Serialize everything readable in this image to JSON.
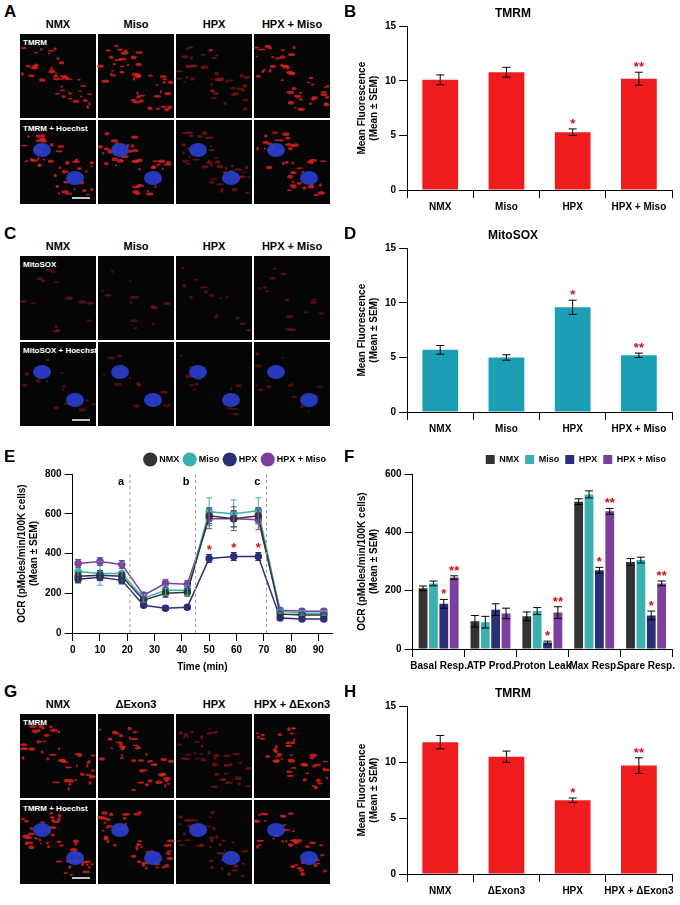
{
  "image_panels": [
    {
      "panel": "A",
      "columns": [
        "NMX",
        "Miso",
        "HPX",
        "HPX + Miso"
      ],
      "rows": [
        "TMRM",
        "TMRM + Hoechst"
      ]
    },
    {
      "panel": "C",
      "columns": [
        "NMX",
        "Miso",
        "HPX",
        "HPX + Miso"
      ],
      "rows": [
        "MitoSOX",
        "MitoSOX + Hoechst"
      ]
    },
    {
      "panel": "G",
      "columns": [
        "NMX",
        "ΔExon3",
        "HPX",
        "HPX + ΔExon3"
      ],
      "rows": [
        "TMRM",
        "TMRM + Hoechst"
      ]
    }
  ],
  "chart_data": [
    {
      "panel": "B",
      "type": "bar",
      "title": "TMRM",
      "ylabel": [
        "Mean Fluorescence",
        "(Mean ± SEM)"
      ],
      "categories": [
        "NMX",
        "Miso",
        "HPX",
        "HPX + Miso"
      ],
      "values": [
        10.1,
        10.8,
        5.3,
        10.2
      ],
      "errors": [
        0.45,
        0.45,
        0.3,
        0.6
      ],
      "marks": [
        null,
        null,
        "*",
        "**"
      ],
      "color": "#ee1c1c",
      "ylim": [
        0,
        15
      ],
      "yticks": [
        0,
        5,
        10,
        15
      ],
      "grid": false
    },
    {
      "panel": "D",
      "type": "bar",
      "title": "MitoSOX",
      "ylabel": [
        "Mean Fluorescence",
        "(Mean ± SEM)"
      ],
      "categories": [
        "NMX",
        "Miso",
        "HPX",
        "HPX + Miso"
      ],
      "values": [
        5.7,
        5.0,
        9.6,
        5.2
      ],
      "errors": [
        0.4,
        0.25,
        0.65,
        0.2
      ],
      "marks": [
        null,
        null,
        "*",
        "**"
      ],
      "color": "#1a9fb5",
      "ylim": [
        0,
        15
      ],
      "yticks": [
        0,
        5,
        10,
        15
      ],
      "grid": false
    },
    {
      "panel": "E",
      "type": "line",
      "xlabel": "Time (min)",
      "ylabel": [
        "OCR (pMoles/min/100K cells)",
        "(Mean ± SEM)"
      ],
      "x": [
        2,
        10,
        18,
        26,
        34,
        42,
        50,
        59,
        68,
        76,
        84,
        92
      ],
      "series": [
        {
          "name": "NMX",
          "color": "#333333",
          "values": [
            285,
            290,
            285,
            165,
            200,
            205,
            590,
            575,
            590,
            95,
            90,
            90
          ],
          "errors": [
            20,
            25,
            20,
            15,
            20,
            20,
            40,
            40,
            40,
            10,
            10,
            10
          ]
        },
        {
          "name": "Miso",
          "color": "#3bb0b0",
          "values": [
            310,
            300,
            300,
            175,
            215,
            215,
            610,
            600,
            615,
            110,
            100,
            100
          ],
          "errors": [
            60,
            60,
            55,
            20,
            25,
            25,
            70,
            70,
            65,
            10,
            10,
            10
          ]
        },
        {
          "name": "HPX",
          "color": "#2b2f7a",
          "values": [
            270,
            280,
            265,
            140,
            125,
            130,
            375,
            385,
            385,
            75,
            70,
            70
          ],
          "errors": [
            15,
            15,
            15,
            10,
            10,
            10,
            20,
            20,
            20,
            8,
            8,
            8
          ],
          "marks": [
            null,
            null,
            null,
            null,
            null,
            null,
            "*",
            "*",
            "*",
            null,
            null,
            null
          ]
        },
        {
          "name": "HPX + Miso",
          "color": "#7b3f9e",
          "values": [
            350,
            360,
            345,
            190,
            250,
            245,
            575,
            575,
            570,
            115,
            110,
            110
          ],
          "errors": [
            20,
            20,
            20,
            15,
            20,
            20,
            50,
            60,
            50,
            10,
            10,
            10
          ]
        }
      ],
      "vlines": [
        {
          "x": 21,
          "label": "a"
        },
        {
          "x": 45,
          "label": "b"
        },
        {
          "x": 71,
          "label": "c"
        }
      ],
      "marker": "circle",
      "xlim": [
        0,
        95
      ],
      "xticks": [
        0,
        10,
        20,
        30,
        40,
        50,
        60,
        70,
        80,
        90
      ],
      "ylim": [
        0,
        800
      ],
      "yticks": [
        0,
        200,
        400,
        600,
        800
      ],
      "legend": "upper right",
      "grid": false
    },
    {
      "panel": "F",
      "type": "bar",
      "ylabel": [
        "OCR (pMoles/min/100K cells)",
        "(Mean ± SEM)"
      ],
      "categories": [
        "Basal Resp.",
        "ATP Prod.",
        "Proton Leak",
        "Max Resp.",
        "Spare Resp."
      ],
      "series": [
        {
          "name": "NMX",
          "color": "#333333",
          "values": [
            208,
            95,
            112,
            505,
            298
          ],
          "errors": [
            8,
            20,
            15,
            10,
            12
          ]
        },
        {
          "name": "Miso",
          "color": "#3bb0b0",
          "values": [
            225,
            92,
            130,
            530,
            305
          ],
          "errors": [
            8,
            20,
            12,
            12,
            10
          ]
        },
        {
          "name": "HPX",
          "color": "#2b2f7a",
          "values": [
            155,
            135,
            22,
            270,
            115
          ],
          "errors": [
            15,
            20,
            5,
            10,
            15
          ],
          "marks": [
            "*",
            null,
            "*",
            "*",
            "*"
          ]
        },
        {
          "name": "HPX + Miso",
          "color": "#7b3f9e",
          "values": [
            245,
            122,
            125,
            472,
            225
          ],
          "errors": [
            6,
            18,
            20,
            10,
            8
          ],
          "marks": [
            "**",
            null,
            "**",
            "**",
            "**"
          ]
        }
      ],
      "ylim": [
        0,
        600
      ],
      "yticks": [
        0,
        200,
        400,
        600
      ],
      "legend": "upper right",
      "grid": false
    },
    {
      "panel": "H",
      "type": "bar",
      "title": "TMRM",
      "ylabel": [
        "Mean Fluorescence",
        "(Mean ± SEM)"
      ],
      "categories": [
        "NMX",
        "ΔExon3",
        "HPX",
        "HPX + ΔExon3"
      ],
      "values": [
        11.8,
        10.5,
        6.6,
        9.7
      ],
      "errors": [
        0.6,
        0.5,
        0.2,
        0.7
      ],
      "marks": [
        null,
        null,
        "*",
        "**"
      ],
      "color": "#ee1c1c",
      "ylim": [
        0,
        15
      ],
      "yticks": [
        0,
        5,
        10,
        15
      ],
      "grid": false
    }
  ]
}
